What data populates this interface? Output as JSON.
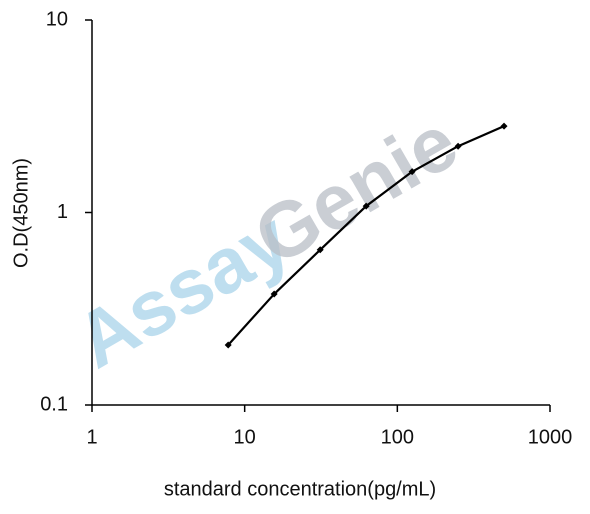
{
  "chart_data": {
    "type": "line",
    "xlabel": "standard concentration(pg/mL)",
    "ylabel": "O.D(450nm)",
    "watermark": [
      "Assay",
      "Genie"
    ],
    "x": [
      7.8,
      15.6,
      31.25,
      62.5,
      125,
      250,
      500
    ],
    "series": [
      {
        "color": "#000000",
        "values": [
          0.205,
          0.377,
          0.64,
          1.08,
          1.63,
          2.21,
          2.81
        ]
      }
    ],
    "xscale": "log",
    "yscale": "log",
    "xlim": [
      1,
      1000
    ],
    "xticks": [
      1,
      10,
      100,
      1000
    ],
    "ylim": [
      0.1,
      10
    ],
    "yticks": [
      0.1,
      1,
      10
    ]
  }
}
